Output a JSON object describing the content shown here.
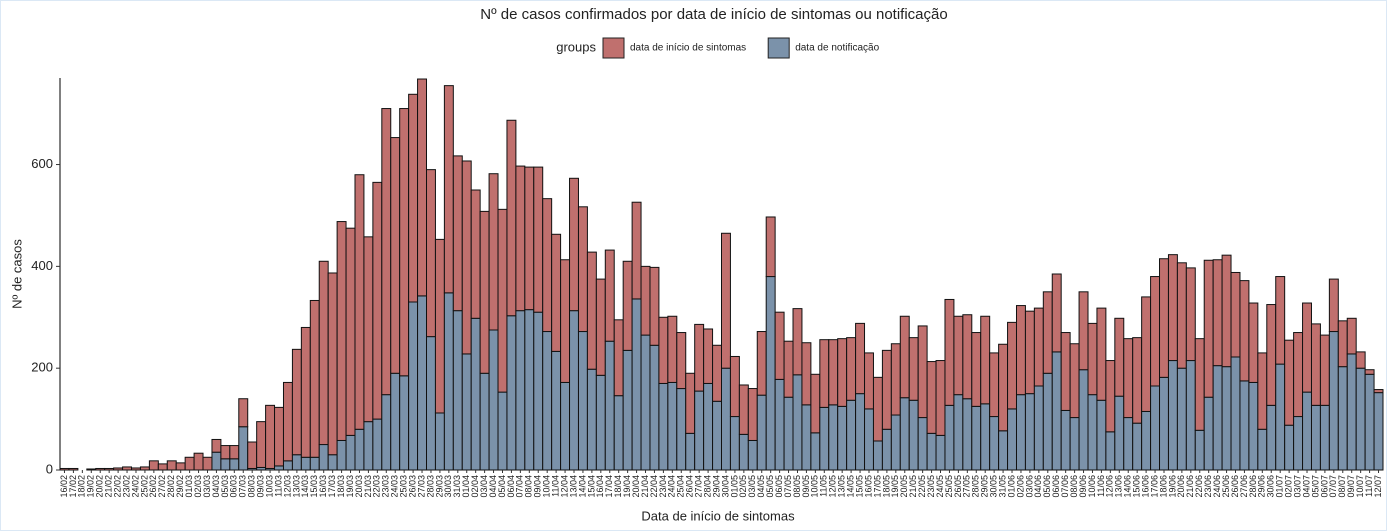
{
  "chart_data": {
    "type": "stacked-bar",
    "title": "Nº de casos confirmados por data de início de sintomas ou notificação",
    "x_label": "Data de início de sintomas",
    "y_label": "Nº de casos",
    "legend_title": "groups",
    "categories": [
      "16/02",
      "17/02",
      "18/02",
      "19/02",
      "20/02",
      "21/02",
      "22/02",
      "23/02",
      "24/02",
      "25/02",
      "26/02",
      "27/02",
      "28/02",
      "29/02",
      "01/03",
      "02/03",
      "03/03",
      "04/03",
      "05/03",
      "06/03",
      "07/03",
      "08/03",
      "09/03",
      "10/03",
      "11/03",
      "12/03",
      "13/03",
      "14/03",
      "15/03",
      "16/03",
      "17/03",
      "18/03",
      "19/03",
      "20/03",
      "21/03",
      "22/03",
      "23/03",
      "24/03",
      "25/03",
      "26/03",
      "27/03",
      "28/03",
      "29/03",
      "30/03",
      "31/03",
      "01/04",
      "02/04",
      "03/04",
      "04/04",
      "05/04",
      "06/04",
      "07/04",
      "08/04",
      "09/04",
      "10/04",
      "11/04",
      "12/04",
      "13/04",
      "14/04",
      "15/04",
      "16/04",
      "17/04",
      "18/04",
      "19/04",
      "20/04",
      "21/04",
      "22/04",
      "23/04",
      "24/04",
      "25/04",
      "26/04",
      "27/04",
      "28/04",
      "29/04",
      "30/04",
      "01/05",
      "02/05",
      "03/05",
      "04/05",
      "05/05",
      "06/05",
      "07/05",
      "08/05",
      "09/05",
      "10/05",
      "11/05",
      "12/05",
      "13/05",
      "14/05",
      "15/05",
      "16/05",
      "17/05",
      "18/05",
      "19/05",
      "20/05",
      "21/05",
      "22/05",
      "23/05",
      "24/05",
      "25/05",
      "26/05",
      "27/05",
      "28/05",
      "29/05",
      "30/05",
      "31/05",
      "01/06",
      "02/06",
      "03/06",
      "04/06",
      "05/06",
      "06/06",
      "07/06",
      "08/06",
      "09/06",
      "10/06",
      "11/06",
      "12/06",
      "13/06",
      "14/06",
      "15/06",
      "16/06",
      "17/06",
      "18/06",
      "19/06",
      "20/06",
      "21/06",
      "22/06",
      "23/06",
      "24/06",
      "25/06",
      "26/06",
      "27/06",
      "28/06",
      "29/06",
      "30/06",
      "01/07",
      "02/07",
      "03/07",
      "04/07",
      "05/07",
      "06/07",
      "07/07",
      "08/07",
      "09/07",
      "10/07",
      "11/07",
      "12/07"
    ],
    "series": [
      {
        "name": "data de início de sintomas",
        "color": "#c0706e",
        "values": [
          3,
          3,
          0,
          2,
          3,
          3,
          4,
          6,
          4,
          6,
          18,
          12,
          18,
          14,
          25,
          33,
          25,
          25,
          26,
          26,
          55,
          52,
          90,
          124,
          115,
          154,
          207,
          255,
          308,
          360,
          357,
          430,
          407,
          500,
          363,
          465,
          562,
          463,
          525,
          408,
          426,
          328,
          341,
          407,
          304,
          379,
          252,
          318,
          307,
          359,
          384,
          284,
          280,
          285,
          261,
          230,
          241,
          260,
          245,
          230,
          189,
          179,
          149,
          175,
          190,
          135,
          153,
          130,
          130,
          110,
          118,
          131,
          107,
          110,
          265,
          118,
          97,
          102,
          125,
          117,
          132,
          110,
          130,
          122,
          115,
          133,
          128,
          133,
          123,
          138,
          110,
          125,
          155,
          140,
          160,
          123,
          180,
          141,
          147,
          208,
          154,
          165,
          145,
          172,
          125,
          170,
          170,
          175,
          162,
          153,
          160,
          153,
          153,
          145,
          153,
          140,
          181,
          140,
          153,
          155,
          168,
          225,
          215,
          233,
          208,
          207,
          182,
          180,
          269,
          208,
          219,
          166,
          197,
          156,
          150,
          198,
          172,
          167,
          165,
          175,
          160,
          138,
          103,
          90,
          70,
          32,
          9,
          6
        ]
      },
      {
        "name": "data de notificação",
        "color": "#7b92aa",
        "values": [
          0,
          0,
          0,
          0,
          0,
          0,
          0,
          0,
          0,
          0,
          0,
          0,
          0,
          0,
          0,
          0,
          0,
          35,
          22,
          22,
          85,
          3,
          5,
          3,
          8,
          18,
          30,
          25,
          25,
          50,
          30,
          58,
          68,
          80,
          95,
          100,
          148,
          190,
          185,
          330,
          342,
          262,
          112,
          348,
          313,
          228,
          298,
          190,
          275,
          153,
          303,
          313,
          315,
          310,
          272,
          233,
          172,
          313,
          272,
          198,
          186,
          253,
          146,
          235,
          336,
          265,
          245,
          170,
          172,
          160,
          72,
          155,
          170,
          135,
          200,
          105,
          70,
          58,
          147,
          380,
          178,
          143,
          187,
          128,
          73,
          123,
          128,
          125,
          137,
          150,
          120,
          57,
          80,
          108,
          142,
          137,
          103,
          72,
          68,
          127,
          148,
          140,
          125,
          130,
          105,
          77,
          120,
          148,
          150,
          165,
          190,
          232,
          117,
          103,
          197,
          148,
          137,
          75,
          145,
          103,
          92,
          115,
          165,
          182,
          215,
          200,
          215,
          78,
          143,
          205,
          203,
          222,
          175,
          172,
          80,
          127,
          208,
          88,
          105,
          153,
          127,
          127,
          272,
          203,
          228,
          200,
          188,
          152
        ]
      }
    ],
    "ylim": [
      0,
      770
    ],
    "yticks": [
      0,
      200,
      400,
      600
    ]
  }
}
